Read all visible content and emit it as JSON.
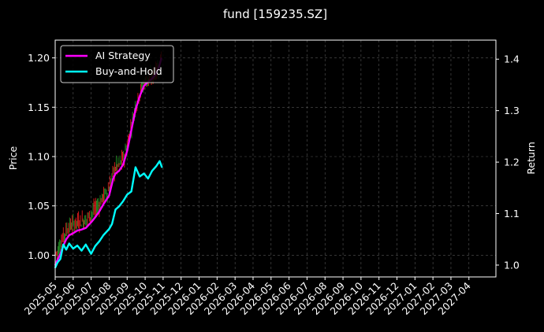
{
  "chart_data": {
    "type": "line",
    "title": "fund [159235.SZ]",
    "ylabel_left": "Price",
    "ylabel_right": "Return",
    "xlabel": "",
    "grid": true,
    "legend_position": "top-left",
    "x_ticks": [
      "2025-05",
      "2025-06",
      "2025-07",
      "2025-08",
      "2025-09",
      "2025-10",
      "2025-11",
      "2025-12",
      "2026-01",
      "2026-02",
      "2026-03",
      "2026-04",
      "2026-05",
      "2026-06",
      "2026-07",
      "2026-08",
      "2026-09",
      "2026-10",
      "2026-11",
      "2026-12",
      "2027-01",
      "2027-02",
      "2027-03",
      "2027-04"
    ],
    "y_left": {
      "ticks": [
        1.0,
        1.05,
        1.1,
        1.15,
        1.2
      ],
      "tick_labels": [
        "1.00",
        "1.05",
        "1.10",
        "1.15",
        "1.20"
      ],
      "range": [
        0.978,
        1.218
      ]
    },
    "y_right": {
      "ticks": [
        1.0,
        1.1,
        1.2,
        1.3,
        1.4
      ],
      "tick_labels": [
        "1.0",
        "1.1",
        "1.2",
        "1.3",
        "1.4"
      ],
      "range": [
        0.977,
        1.437
      ]
    },
    "x_range_months": [
      0,
      24.5
    ],
    "colors": {
      "up": "#ff2020",
      "down": "#2aa02a",
      "ai": "#ff00ff",
      "bh": "#00ffff",
      "grid": "#555555",
      "axis": "#ffffff"
    },
    "series": [
      {
        "name": "AI Strategy",
        "axis": "right",
        "color": "#ff00ff",
        "x": [
          "2025-05-01",
          "2025-05-05",
          "2025-05-10",
          "2025-05-15",
          "2025-05-20",
          "2025-05-25",
          "2025-06-01",
          "2025-06-08",
          "2025-06-15",
          "2025-06-22",
          "2025-07-01",
          "2025-07-08",
          "2025-07-15",
          "2025-07-22",
          "2025-08-01",
          "2025-08-08",
          "2025-08-12",
          "2025-08-18",
          "2025-08-25",
          "2025-09-01",
          "2025-09-08",
          "2025-09-15",
          "2025-09-22",
          "2025-09-29",
          "2025-10-06",
          "2025-10-13",
          "2025-10-20",
          "2025-10-25",
          "2025-10-29"
        ],
        "values": [
          1.0,
          1.01,
          1.022,
          1.038,
          1.05,
          1.058,
          1.062,
          1.067,
          1.069,
          1.072,
          1.083,
          1.093,
          1.104,
          1.118,
          1.135,
          1.168,
          1.178,
          1.183,
          1.195,
          1.222,
          1.262,
          1.302,
          1.328,
          1.348,
          1.356,
          1.362,
          1.372,
          1.385,
          1.402
        ]
      },
      {
        "name": "Buy-and-Hold",
        "axis": "right",
        "color": "#00ffff",
        "x": [
          "2025-05-01",
          "2025-05-05",
          "2025-05-10",
          "2025-05-15",
          "2025-05-20",
          "2025-05-25",
          "2025-06-01",
          "2025-06-08",
          "2025-06-15",
          "2025-06-22",
          "2025-07-01",
          "2025-07-08",
          "2025-07-15",
          "2025-07-22",
          "2025-08-01",
          "2025-08-06",
          "2025-08-12",
          "2025-08-18",
          "2025-08-25",
          "2025-09-01",
          "2025-09-08",
          "2025-09-15",
          "2025-09-22",
          "2025-09-29",
          "2025-10-06",
          "2025-10-13",
          "2025-10-20",
          "2025-10-26",
          "2025-10-30"
        ],
        "values": [
          0.995,
          1.005,
          1.012,
          1.04,
          1.03,
          1.042,
          1.032,
          1.038,
          1.028,
          1.04,
          1.022,
          1.037,
          1.046,
          1.058,
          1.07,
          1.08,
          1.108,
          1.114,
          1.124,
          1.137,
          1.143,
          1.19,
          1.172,
          1.178,
          1.168,
          1.183,
          1.192,
          1.202,
          1.19
        ]
      }
    ]
  }
}
